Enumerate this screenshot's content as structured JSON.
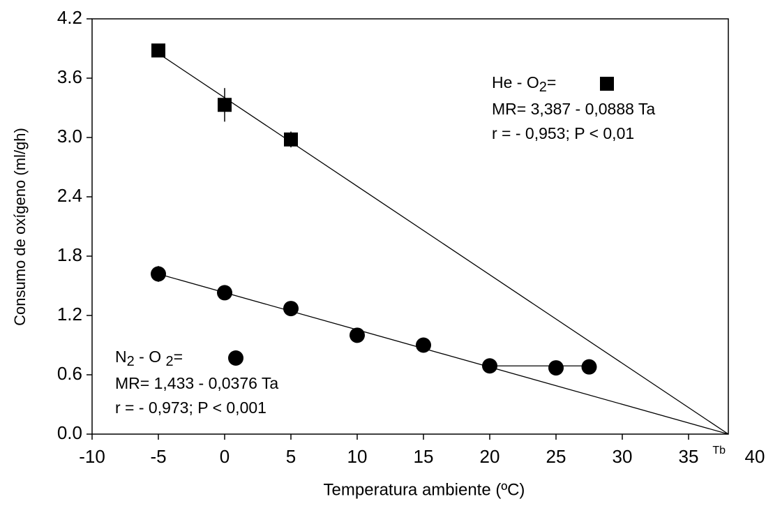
{
  "chart_data": {
    "type": "scatter",
    "x_label": "Temperatura ambiente (ºC)",
    "y_label": "Consumo de oxígeno (ml/gh)",
    "xlim": [
      -10,
      38
    ],
    "xticks": [
      -10,
      -5,
      0,
      5,
      10,
      15,
      20,
      25,
      30,
      35,
      40
    ],
    "ylim": [
      0,
      4.2
    ],
    "yticks": [
      {
        "value": 0,
        "label": "0.0"
      },
      0.6,
      1.2,
      1.8,
      2.4,
      {
        "value": 3,
        "label": "3.0"
      },
      3.6,
      4.2
    ],
    "series": [
      {
        "marker": "square",
        "color": "#000000",
        "x": [
          -5,
          0,
          5
        ],
        "values": [
          3.88,
          3.33,
          2.98
        ],
        "errors": [
          0.03,
          0.17,
          0.08
        ],
        "legend_parts": [
          "He - O",
          "2",
          "="
        ],
        "equation": "MR= 3,387 - 0,0888 Ta",
        "stats": "r = - 0,953; P < 0,01"
      },
      {
        "marker": "circle",
        "color": "#000000",
        "x": [
          -5,
          0,
          5,
          10,
          15,
          20,
          25,
          27.5
        ],
        "values": [
          1.62,
          1.43,
          1.27,
          1.0,
          0.9,
          0.69,
          0.67,
          0.68
        ],
        "errors": [
          0.08,
          0.03,
          0.06,
          0.07,
          0.02,
          0.02,
          0.02,
          0.02
        ],
        "legend_parts": [
          "N",
          "2",
          " - O ",
          "2",
          "="
        ],
        "equation": "MR= 1,433 - 0,0376 Ta",
        "stats": "r = - 0,973; P < 0,001"
      }
    ],
    "lines": [
      {
        "x": [
          -5,
          38
        ],
        "y": [
          3.85,
          0
        ]
      },
      {
        "x": [
          -5,
          38
        ],
        "y": [
          1.62,
          0
        ]
      },
      {
        "x": [
          20,
          27.5
        ],
        "y": [
          0.69,
          0.69
        ]
      }
    ],
    "annotation": "Tb"
  }
}
